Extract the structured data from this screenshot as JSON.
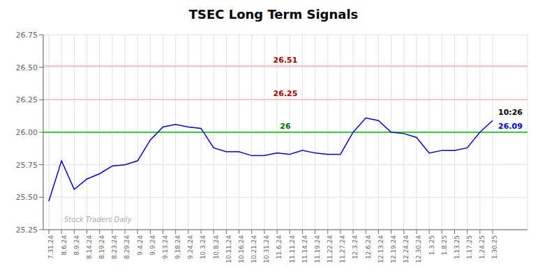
{
  "chart_data": {
    "type": "line",
    "title": "TSEC Long Term Signals",
    "categories": [
      "7.31.24",
      "8.6.24",
      "8.9.24",
      "8.14.24",
      "8.19.24",
      "8.23.24",
      "8.29.24",
      "9.4.24",
      "9.9.24",
      "9.13.24",
      "9.18.24",
      "9.24.24",
      "10.3.24",
      "10.8.24",
      "10.11.24",
      "10.16.24",
      "10.21.24",
      "10.31.24",
      "11.6.24",
      "11.11.24",
      "11.14.24",
      "11.19.24",
      "11.22.24",
      "11.27.24",
      "12.3.24",
      "12.6.24",
      "12.13.24",
      "12.19.24",
      "12.24.24",
      "12.30.24",
      "1.3.25",
      "1.8.25",
      "1.13.25",
      "1.17.25",
      "1.24.25",
      "1.30.25"
    ],
    "values": [
      25.47,
      25.78,
      25.56,
      25.64,
      25.68,
      25.74,
      25.75,
      25.78,
      25.94,
      26.04,
      26.06,
      26.04,
      26.03,
      25.88,
      25.85,
      25.85,
      25.82,
      25.82,
      25.84,
      25.83,
      25.86,
      25.84,
      25.83,
      25.83,
      26.0,
      26.11,
      26.09,
      26.0,
      25.99,
      25.96,
      25.84,
      25.86,
      25.86,
      25.88,
      26.0,
      26.09
    ],
    "color": "#0000cc",
    "ylim": [
      25.25,
      26.75
    ],
    "yticks": [
      25.25,
      {
        "value": 25.5,
        "label": "25.50"
      },
      25.75,
      {
        "value": 26.0,
        "label": "26.00"
      },
      26.25,
      {
        "value": 26.5,
        "label": "26.50"
      },
      26.75
    ],
    "grid": true,
    "reference_lines": [
      {
        "value": 26.51,
        "label": "26.51",
        "color": "#ffb3b3",
        "label_color": "#990000"
      },
      {
        "value": 26.25,
        "label": "26.25",
        "color": "#ffb3b3",
        "label_color": "#990000"
      },
      {
        "value": 26.0,
        "label": "26",
        "color": "#33cc33",
        "label_color": "#006600"
      }
    ],
    "annotations": [
      {
        "text": "10:26",
        "color": "#000000"
      },
      {
        "text": "26.09",
        "color": "#0000cc"
      },
      {
        "text": "Stock Traders Daily",
        "color": "#aaaaaa"
      }
    ]
  }
}
